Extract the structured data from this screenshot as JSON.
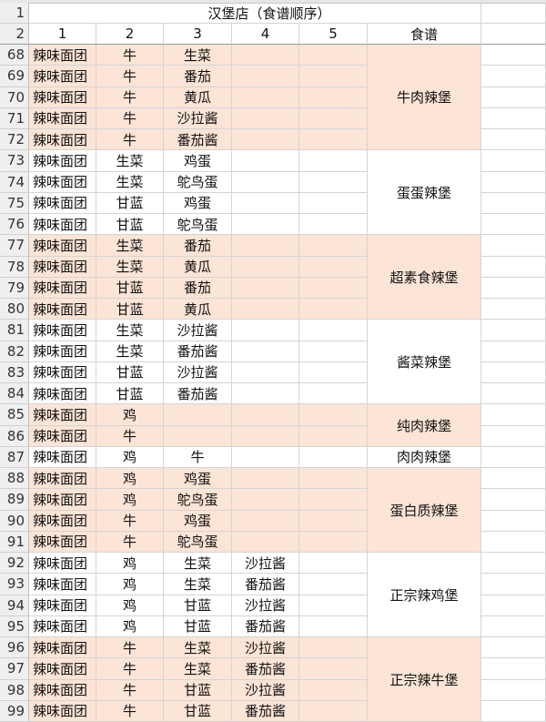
{
  "sheet": {
    "title": "汉堡店（食谱顺序）",
    "title_row": "1",
    "header_row": "2",
    "column_headers": [
      "1",
      "2",
      "3",
      "4",
      "5",
      "食谱"
    ],
    "shade_color": "#fce4d6",
    "groups": [
      {
        "recipe": "牛肉辣堡",
        "shaded": true,
        "rows": [
          {
            "n": "68",
            "c": [
              "辣味面团",
              "牛",
              "生菜",
              "",
              ""
            ]
          },
          {
            "n": "69",
            "c": [
              "辣味面团",
              "牛",
              "番茄",
              "",
              ""
            ]
          },
          {
            "n": "70",
            "c": [
              "辣味面团",
              "牛",
              "黄瓜",
              "",
              ""
            ]
          },
          {
            "n": "71",
            "c": [
              "辣味面团",
              "牛",
              "沙拉酱",
              "",
              ""
            ]
          },
          {
            "n": "72",
            "c": [
              "辣味面团",
              "牛",
              "番茄酱",
              "",
              ""
            ]
          }
        ]
      },
      {
        "recipe": "蛋蛋辣堡",
        "shaded": false,
        "rows": [
          {
            "n": "73",
            "c": [
              "辣味面团",
              "生菜",
              "鸡蛋",
              "",
              ""
            ]
          },
          {
            "n": "74",
            "c": [
              "辣味面团",
              "生菜",
              "鸵鸟蛋",
              "",
              ""
            ]
          },
          {
            "n": "75",
            "c": [
              "辣味面团",
              "甘蓝",
              "鸡蛋",
              "",
              ""
            ]
          },
          {
            "n": "76",
            "c": [
              "辣味面团",
              "甘蓝",
              "鸵鸟蛋",
              "",
              ""
            ]
          }
        ]
      },
      {
        "recipe": "超素食辣堡",
        "shaded": true,
        "rows": [
          {
            "n": "77",
            "c": [
              "辣味面团",
              "生菜",
              "番茄",
              "",
              ""
            ]
          },
          {
            "n": "78",
            "c": [
              "辣味面团",
              "生菜",
              "黄瓜",
              "",
              ""
            ]
          },
          {
            "n": "79",
            "c": [
              "辣味面团",
              "甘蓝",
              "番茄",
              "",
              ""
            ]
          },
          {
            "n": "80",
            "c": [
              "辣味面团",
              "甘蓝",
              "黄瓜",
              "",
              ""
            ]
          }
        ]
      },
      {
        "recipe": "酱菜辣堡",
        "shaded": false,
        "rows": [
          {
            "n": "81",
            "c": [
              "辣味面团",
              "生菜",
              "沙拉酱",
              "",
              ""
            ]
          },
          {
            "n": "82",
            "c": [
              "辣味面团",
              "生菜",
              "番茄酱",
              "",
              ""
            ]
          },
          {
            "n": "83",
            "c": [
              "辣味面团",
              "甘蓝",
              "沙拉酱",
              "",
              ""
            ]
          },
          {
            "n": "84",
            "c": [
              "辣味面团",
              "甘蓝",
              "番茄酱",
              "",
              ""
            ]
          }
        ]
      },
      {
        "recipe": "纯肉辣堡",
        "shaded": true,
        "rows": [
          {
            "n": "85",
            "c": [
              "辣味面团",
              "鸡",
              "",
              "",
              ""
            ]
          },
          {
            "n": "86",
            "c": [
              "辣味面团",
              "牛",
              "",
              "",
              ""
            ]
          }
        ]
      },
      {
        "recipe": "肉肉辣堡",
        "shaded": false,
        "rows": [
          {
            "n": "87",
            "c": [
              "辣味面团",
              "鸡",
              "牛",
              "",
              ""
            ]
          }
        ]
      },
      {
        "recipe": "蛋白质辣堡",
        "shaded": true,
        "rows": [
          {
            "n": "88",
            "c": [
              "辣味面团",
              "鸡",
              "鸡蛋",
              "",
              ""
            ]
          },
          {
            "n": "89",
            "c": [
              "辣味面团",
              "鸡",
              "鸵鸟蛋",
              "",
              ""
            ]
          },
          {
            "n": "90",
            "c": [
              "辣味面团",
              "牛",
              "鸡蛋",
              "",
              ""
            ]
          },
          {
            "n": "91",
            "c": [
              "辣味面团",
              "牛",
              "鸵鸟蛋",
              "",
              ""
            ]
          }
        ]
      },
      {
        "recipe": "正宗辣鸡堡",
        "shaded": false,
        "rows": [
          {
            "n": "92",
            "c": [
              "辣味面团",
              "鸡",
              "生菜",
              "沙拉酱",
              ""
            ]
          },
          {
            "n": "93",
            "c": [
              "辣味面团",
              "鸡",
              "生菜",
              "番茄酱",
              ""
            ]
          },
          {
            "n": "94",
            "c": [
              "辣味面团",
              "鸡",
              "甘蓝",
              "沙拉酱",
              ""
            ]
          },
          {
            "n": "95",
            "c": [
              "辣味面团",
              "鸡",
              "甘蓝",
              "番茄酱",
              ""
            ]
          }
        ]
      },
      {
        "recipe": "正宗辣牛堡",
        "shaded": true,
        "rows": [
          {
            "n": "96",
            "c": [
              "辣味面团",
              "牛",
              "生菜",
              "沙拉酱",
              ""
            ]
          },
          {
            "n": "97",
            "c": [
              "辣味面团",
              "牛",
              "生菜",
              "番茄酱",
              ""
            ]
          },
          {
            "n": "98",
            "c": [
              "辣味面团",
              "牛",
              "甘蓝",
              "沙拉酱",
              ""
            ]
          },
          {
            "n": "99",
            "c": [
              "辣味面团",
              "牛",
              "甘蓝",
              "番茄酱",
              ""
            ]
          }
        ]
      }
    ]
  }
}
